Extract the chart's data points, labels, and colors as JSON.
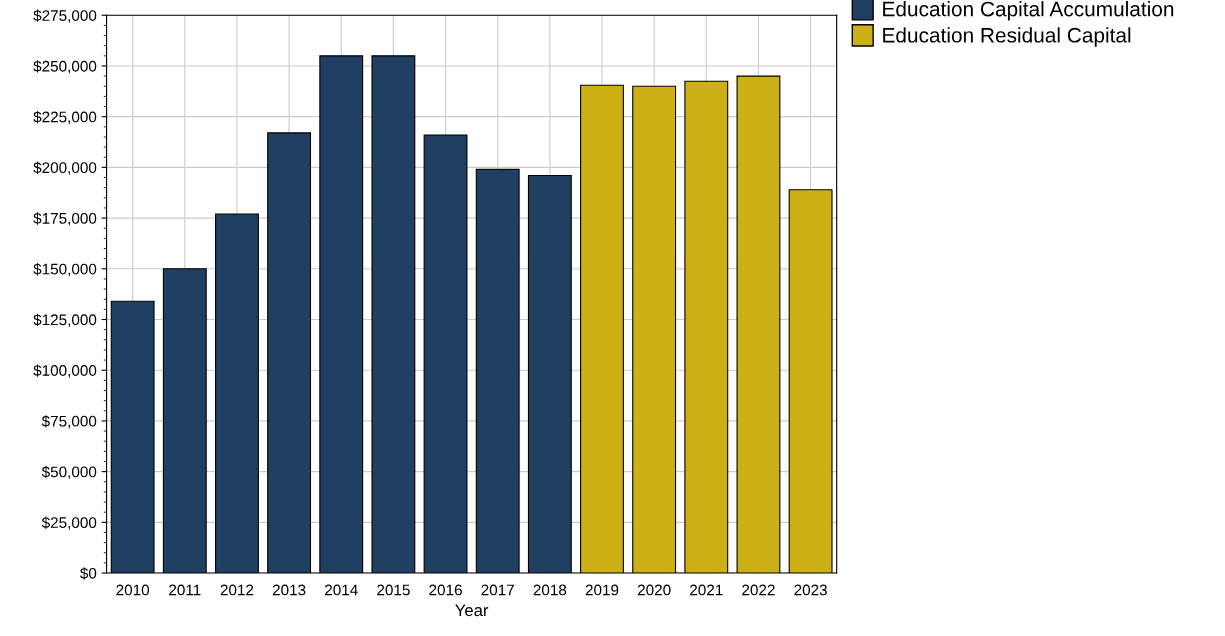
{
  "chart_data": {
    "type": "bar",
    "xlabel": "Year",
    "categories": [
      "2010",
      "2011",
      "2012",
      "2013",
      "2014",
      "2015",
      "2016",
      "2017",
      "2018",
      "2019",
      "2020",
      "2021",
      "2022",
      "2023"
    ],
    "series": [
      {
        "name": "Education Capital Accumulation",
        "color": "#1f3f63",
        "values": [
          134000,
          150000,
          177000,
          217000,
          255000,
          255000,
          216000,
          199000,
          196000,
          null,
          null,
          null,
          null,
          null
        ]
      },
      {
        "name": "Education Residual Capital",
        "color": "#ccb014",
        "values": [
          null,
          null,
          null,
          null,
          null,
          null,
          null,
          null,
          null,
          240500,
          240000,
          242500,
          245000,
          189000
        ]
      }
    ],
    "ylim": [
      0,
      275000
    ],
    "yticks": [
      {
        "value": 0,
        "label": "$0"
      },
      {
        "value": 25000,
        "label": "$25,000"
      },
      {
        "value": 50000,
        "label": "$50,000"
      },
      {
        "value": 75000,
        "label": "$75,000"
      },
      {
        "value": 100000,
        "label": "$100,000"
      },
      {
        "value": 125000,
        "label": "$125,000"
      },
      {
        "value": 150000,
        "label": "$150,000"
      },
      {
        "value": 175000,
        "label": "$175,000"
      },
      {
        "value": 200000,
        "label": "$200,000"
      },
      {
        "value": 225000,
        "label": "$225,000"
      },
      {
        "value": 250000,
        "label": "$250,000"
      },
      {
        "value": 275000,
        "label": "$275,000"
      }
    ],
    "grid": true,
    "legend": "top right"
  }
}
